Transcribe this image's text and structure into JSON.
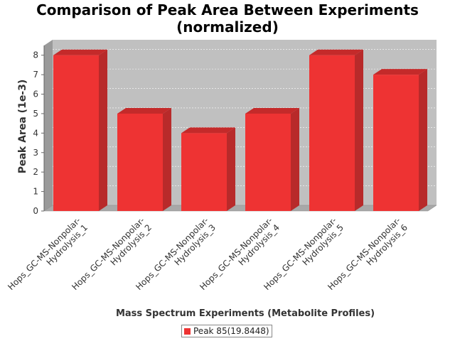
{
  "chart_data": {
    "type": "bar",
    "title": "Comparison of Peak Area Between Experiments",
    "subtitle": "(normalized)",
    "xlabel": "Mass Spectrum Experiments (Metabolite Profiles)",
    "ylabel": "Peak Area (1e-3)",
    "categories": [
      "Hops_GC-MS-Nonpolar-Hydrolysis_1",
      "Hops_GC-MS-Nonpolar-Hydrolysis_2",
      "Hops_GC-MS-Nonpolar-Hydrolysis_3",
      "Hops_GC-MS-Nonpolar-Hydrolysis_4",
      "Hops_GC-MS-Nonpolar-Hydrolysis_5",
      "Hops_GC-MS-Nonpolar-Hydrolysis_6"
    ],
    "category_lines": [
      [
        "Hops_GC-MS-Nonpolar-",
        "Hydrolysis_1"
      ],
      [
        "Hops_GC-MS-Nonpolar-",
        "Hydrolysis_2"
      ],
      [
        "Hops_GC-MS-Nonpolar-",
        "Hydrolysis_3"
      ],
      [
        "Hops_GC-MS-Nonpolar-",
        "Hydrolysis_4"
      ],
      [
        "Hops_GC-MS-Nonpolar-",
        "Hydrolysis_5"
      ],
      [
        "Hops_GC-MS-Nonpolar-",
        "Hydrolysis_6"
      ]
    ],
    "series": [
      {
        "name": "Peak 85(19.8448)",
        "values": [
          8,
          5,
          4,
          5,
          8,
          7
        ]
      }
    ],
    "ylim": [
      0,
      8.5
    ],
    "yticks": [
      0,
      1,
      2,
      3,
      4,
      5,
      6,
      7,
      8
    ],
    "grid": true,
    "legend_position": "bottom-center",
    "colors": {
      "bar_front": "#ee3333",
      "bar_top": "#c42a2a",
      "bar_side": "#b82a2a",
      "plot_back": "#c0c0c0",
      "plot_wall": "#9a9a9a",
      "plot_floor": "#a8a8a8"
    }
  }
}
